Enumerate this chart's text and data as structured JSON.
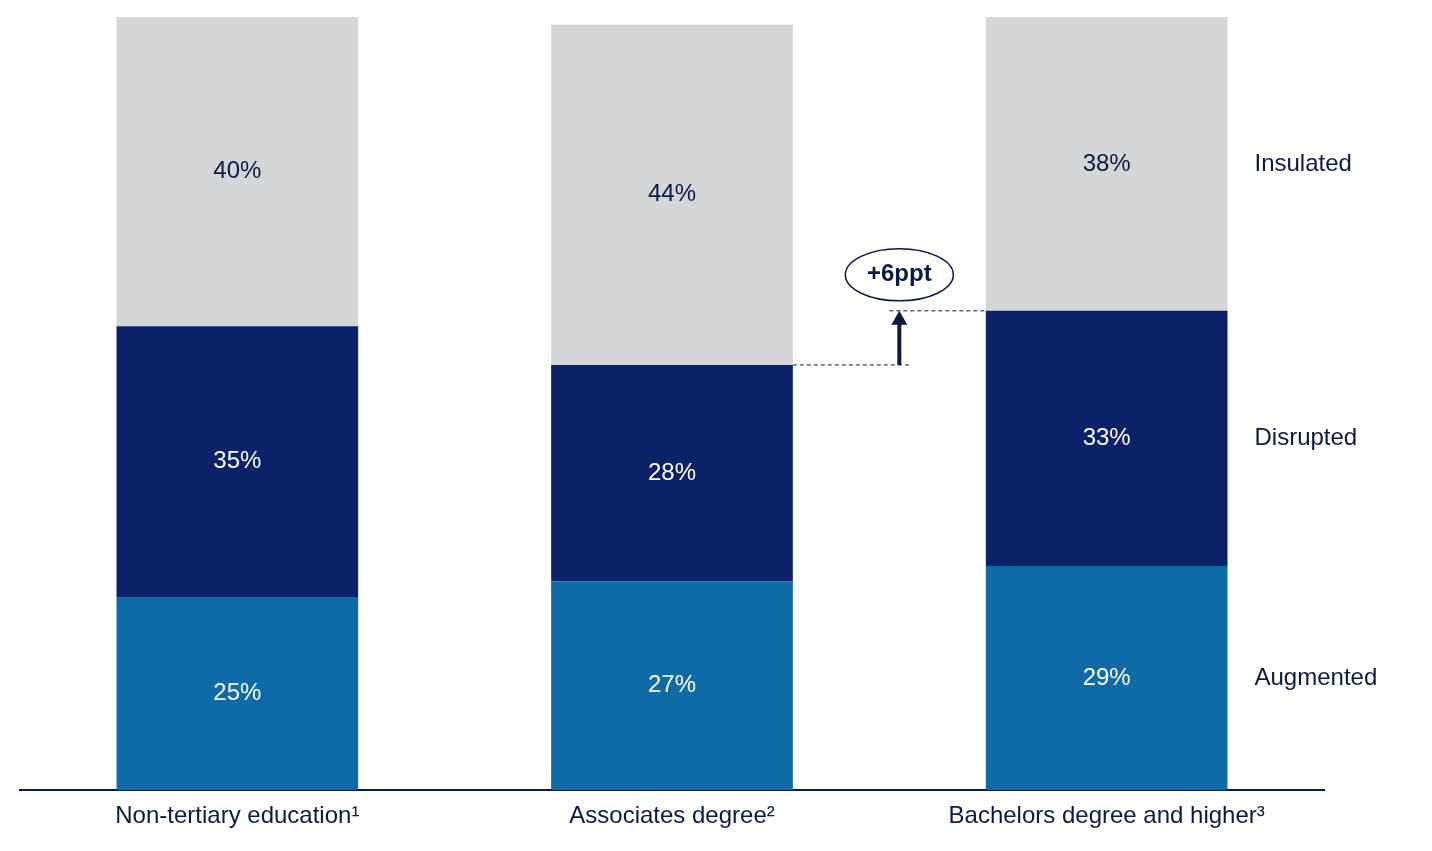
{
  "chart_data": {
    "type": "bar",
    "stacked": true,
    "categories": [
      "Non-tertiary education¹",
      "Associates degree²",
      "Bachelors degree and higher³"
    ],
    "series": [
      {
        "name": "Augmented",
        "color": "#0f6ba8",
        "values": [
          25,
          27,
          29
        ],
        "value_labels": [
          "25%",
          "27%",
          "29%"
        ]
      },
      {
        "name": "Disrupted",
        "color": "#0b2168",
        "values": [
          35,
          28,
          33
        ],
        "value_labels": [
          "35%",
          "28%",
          "33%"
        ]
      },
      {
        "name": "Insulated",
        "color": "#d5d6d8",
        "values": [
          40,
          44,
          38
        ],
        "value_labels": [
          "40%",
          "44%",
          "38%"
        ]
      }
    ],
    "tick_labels": "x",
    "grid": false,
    "legend": "right",
    "annotations": [
      "+6ppt"
    ]
  }
}
